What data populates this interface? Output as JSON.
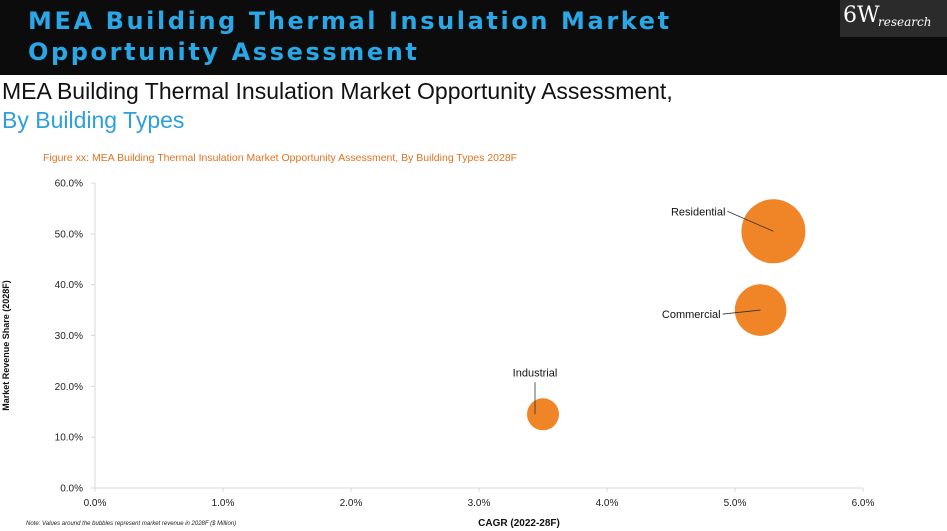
{
  "banner": {
    "title": "MEA Building Thermal Insulation Market Opportunity Assessment",
    "logo_mark": "6W",
    "logo_word": "research"
  },
  "heading": {
    "line1": "MEA Building Thermal Insulation Market Opportunity Assessment,",
    "line2": "By Building Types"
  },
  "figure_caption": "Figure xx: MEA Building Thermal Insulation Market Opportunity Assessment, By Building Types 2028F",
  "note": "Note: Values around the bubbles represent market revenue in 2028F ($ Million)",
  "colors": {
    "banner_bg": "#0c0c0c",
    "banner_title": "#2aa7e6",
    "subtitle_blue": "#2d9fe0",
    "caption_orange": "#e3731f",
    "bubble": "#ef8526",
    "axis": "#d9d9d9"
  },
  "chart_data": {
    "type": "scatter",
    "title": "Figure xx: MEA Building Thermal Insulation Market Opportunity Assessment, By Building Types 2028F",
    "xlabel": "CAGR (2022-28F)",
    "ylabel": "Market Revenue Share (2028F)",
    "xlim": [
      0,
      6
    ],
    "ylim": [
      0,
      60
    ],
    "x_ticks": [
      "0.0%",
      "1.0%",
      "2.0%",
      "3.0%",
      "4.0%",
      "5.0%",
      "6.0%"
    ],
    "y_ticks": [
      "0.0%",
      "10.0%",
      "20.0%",
      "30.0%",
      "40.0%",
      "50.0%",
      "60.0%"
    ],
    "grid": false,
    "bubble_size_relative": true,
    "points": [
      {
        "name": "Residential",
        "x": 5.3,
        "y": 50.5,
        "size": 1.0
      },
      {
        "name": "Commercial",
        "x": 5.2,
        "y": 35.0,
        "size": 0.65
      },
      {
        "name": "Industrial",
        "x": 3.5,
        "y": 14.5,
        "size": 0.25
      }
    ]
  }
}
